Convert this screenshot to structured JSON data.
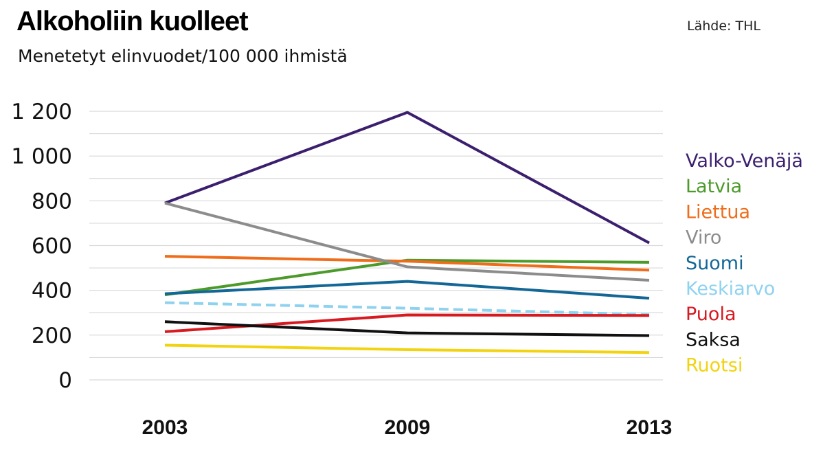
{
  "header": {
    "title": "Alkoholiin kuolleet",
    "subtitle": "Menetetyt elinvuodet/100 000 ihmistä",
    "source": "Lähde: THL"
  },
  "chart_data": {
    "type": "line",
    "title": "Alkoholiin kuolleet",
    "subtitle": "Menetetyt elinvuodet/100 000 ihmistä",
    "xlabel": "",
    "ylabel": "",
    "x": [
      "2003",
      "2009",
      "2013"
    ],
    "ylim": [
      0,
      1200
    ],
    "yticks": [
      0,
      200,
      400,
      600,
      800,
      1000,
      1200
    ],
    "ytick_labels": [
      "0",
      "200",
      "400",
      "600",
      "800",
      "1 000",
      "1 200"
    ],
    "grid": true,
    "legend_position": "right",
    "series": [
      {
        "name": "Valko-Venäjä",
        "color": "#3b1f6e",
        "dashed": false,
        "values": [
          790,
          1195,
          612
        ]
      },
      {
        "name": "Latvia",
        "color": "#4c9a2a",
        "dashed": false,
        "values": [
          380,
          535,
          525
        ]
      },
      {
        "name": "Liettua",
        "color": "#ef6c1a",
        "dashed": false,
        "values": [
          552,
          530,
          490
        ]
      },
      {
        "name": "Viro",
        "color": "#8c8c8c",
        "dashed": false,
        "values": [
          790,
          505,
          445
        ]
      },
      {
        "name": "Suomi",
        "color": "#136796",
        "dashed": false,
        "values": [
          385,
          440,
          365
        ]
      },
      {
        "name": "Keskiarvo",
        "color": "#8fd2f0",
        "dashed": true,
        "values": [
          345,
          320,
          292
        ]
      },
      {
        "name": "Puola",
        "color": "#d71920",
        "dashed": false,
        "values": [
          215,
          290,
          288
        ]
      },
      {
        "name": "Saksa",
        "color": "#111111",
        "dashed": false,
        "values": [
          260,
          210,
          198
        ]
      },
      {
        "name": "Ruotsi",
        "color": "#f2d30f",
        "dashed": false,
        "values": [
          155,
          135,
          122
        ]
      }
    ]
  }
}
